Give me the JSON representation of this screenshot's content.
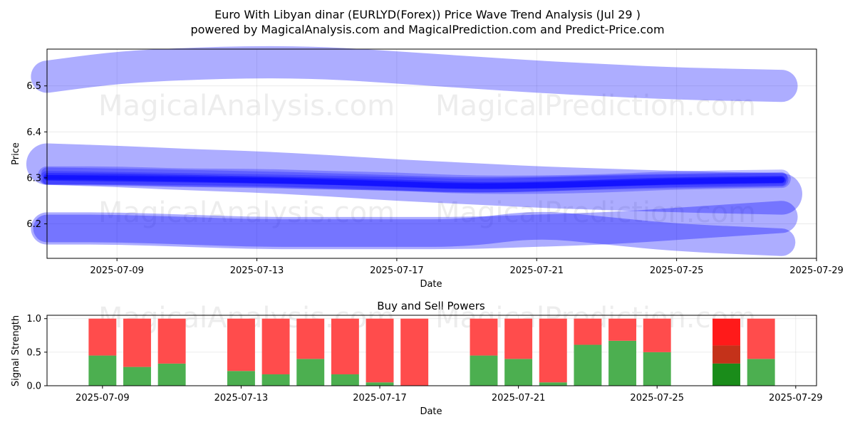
{
  "figure": {
    "title_line1": "Euro With Libyan dinar (EURLYD(Forex)) Price Wave Trend Analysis (Jul 29 )",
    "title_line2": "powered by MagicalAnalysis.com and MagicalPrediction.com and Predict-Price.com",
    "watermarks": [
      "MagicalAnalysis.com",
      "MagicalPrediction.com"
    ]
  },
  "chart_data": [
    {
      "type": "area",
      "title": "",
      "xlabel": "Date",
      "ylabel": "Price",
      "x_ticks": [
        "2025-07-09",
        "2025-07-13",
        "2025-07-17",
        "2025-07-21",
        "2025-07-25",
        "2025-07-29"
      ],
      "y_ticks": [
        6.2,
        6.3,
        6.4,
        6.5
      ],
      "xlim": [
        "2025-07-07",
        "2025-07-29"
      ],
      "ylim": [
        6.125,
        6.58
      ],
      "grid": true,
      "band_color": "#0000ff",
      "series": [
        {
          "x": [
            "2025-07-07",
            "2025-07-09",
            "2025-07-11",
            "2025-07-13",
            "2025-07-15",
            "2025-07-17",
            "2025-07-19",
            "2025-07-21",
            "2025-07-23",
            "2025-07-25",
            "2025-07-28"
          ],
          "y": [
            6.52,
            6.54,
            6.548,
            6.552,
            6.55,
            6.54,
            6.53,
            6.52,
            6.512,
            6.505,
            6.5
          ],
          "width": 0.07,
          "opacity": 0.32
        },
        {
          "x": [
            "2025-07-07",
            "2025-07-09",
            "2025-07-11",
            "2025-07-13",
            "2025-07-15",
            "2025-07-17",
            "2025-07-19",
            "2025-07-21",
            "2025-07-23",
            "2025-07-25",
            "2025-07-28"
          ],
          "y": [
            6.33,
            6.325,
            6.318,
            6.313,
            6.305,
            6.295,
            6.288,
            6.28,
            6.275,
            6.27,
            6.265
          ],
          "width": 0.09,
          "opacity": 0.32
        },
        {
          "x": [
            "2025-07-07",
            "2025-07-09",
            "2025-07-11",
            "2025-07-13",
            "2025-07-15",
            "2025-07-17",
            "2025-07-19",
            "2025-07-21",
            "2025-07-23",
            "2025-07-25",
            "2025-07-28"
          ],
          "y": [
            6.19,
            6.19,
            6.185,
            6.18,
            6.18,
            6.18,
            6.18,
            6.185,
            6.19,
            6.2,
            6.215
          ],
          "width": 0.07,
          "opacity": 0.32
        },
        {
          "x": [
            "2025-07-07",
            "2025-07-09",
            "2025-07-11",
            "2025-07-13",
            "2025-07-15",
            "2025-07-17",
            "2025-07-19",
            "2025-07-21",
            "2025-07-23",
            "2025-07-25",
            "2025-07-28"
          ],
          "y": [
            6.19,
            6.19,
            6.185,
            6.18,
            6.18,
            6.18,
            6.18,
            6.2,
            6.185,
            6.17,
            6.16
          ],
          "width": 0.06,
          "opacity": 0.32
        },
        {
          "x": [
            "2025-07-07",
            "2025-07-09",
            "2025-07-11",
            "2025-07-13",
            "2025-07-15",
            "2025-07-17",
            "2025-07-19",
            "2025-07-21",
            "2025-07-23",
            "2025-07-25",
            "2025-07-28"
          ],
          "y": [
            6.305,
            6.305,
            6.3,
            6.3,
            6.295,
            6.292,
            6.285,
            6.285,
            6.288,
            6.295,
            6.298
          ],
          "width": 0.04,
          "opacity": 0.25
        },
        {
          "x": [
            "2025-07-07",
            "2025-07-09",
            "2025-07-11",
            "2025-07-13",
            "2025-07-15",
            "2025-07-17",
            "2025-07-19",
            "2025-07-21",
            "2025-07-23",
            "2025-07-25",
            "2025-07-28"
          ],
          "y": [
            6.3,
            6.298,
            6.295,
            6.293,
            6.29,
            6.287,
            6.282,
            6.285,
            6.29,
            6.292,
            6.296
          ],
          "width": 0.03,
          "opacity": 0.25
        },
        {
          "x": [
            "2025-07-07",
            "2025-07-09",
            "2025-07-11",
            "2025-07-13",
            "2025-07-15",
            "2025-07-17",
            "2025-07-19",
            "2025-07-21",
            "2025-07-23",
            "2025-07-25",
            "2025-07-28"
          ],
          "y": [
            6.31,
            6.308,
            6.305,
            6.302,
            6.298,
            6.293,
            6.288,
            6.29,
            6.294,
            6.297,
            6.3
          ],
          "width": 0.025,
          "opacity": 0.25
        },
        {
          "x": [
            "2025-07-07",
            "2025-07-09",
            "2025-07-11",
            "2025-07-13",
            "2025-07-15",
            "2025-07-17",
            "2025-07-19",
            "2025-07-21",
            "2025-07-23",
            "2025-07-25",
            "2025-07-28"
          ],
          "y": [
            6.296,
            6.296,
            6.294,
            6.292,
            6.288,
            6.283,
            6.278,
            6.28,
            6.286,
            6.29,
            6.293
          ],
          "width": 0.02,
          "opacity": 0.3
        },
        {
          "x": [
            "2025-07-07",
            "2025-07-09",
            "2025-07-11",
            "2025-07-13",
            "2025-07-15",
            "2025-07-17",
            "2025-07-19",
            "2025-07-21",
            "2025-07-23",
            "2025-07-25",
            "2025-07-28"
          ],
          "y": [
            6.303,
            6.302,
            6.299,
            6.296,
            6.293,
            6.289,
            6.283,
            6.284,
            6.289,
            6.294,
            6.297
          ],
          "width": 0.015,
          "opacity": 0.35
        },
        {
          "x": [
            "2025-07-07",
            "2025-07-09",
            "2025-07-11",
            "2025-07-13",
            "2025-07-15",
            "2025-07-17",
            "2025-07-19",
            "2025-07-21",
            "2025-07-23",
            "2025-07-25",
            "2025-07-28"
          ],
          "y": [
            6.3,
            6.298,
            6.296,
            6.294,
            6.291,
            6.286,
            6.281,
            6.283,
            6.287,
            6.292,
            6.295
          ],
          "width": 0.012,
          "opacity": 0.4
        }
      ]
    },
    {
      "type": "bar",
      "title": "Buy and Sell Powers",
      "xlabel": "Date",
      "ylabel": "Signal Strength",
      "x_ticks": [
        "2025-07-09",
        "2025-07-13",
        "2025-07-17",
        "2025-07-21",
        "2025-07-25",
        "2025-07-29"
      ],
      "y_ticks": [
        0.0,
        0.5,
        1.0
      ],
      "ylim": [
        0,
        1.05
      ],
      "grid": true,
      "buy_color": "#4caf50",
      "sell_color": "#ff4c4c",
      "highlight_buy_color": "#1a8c1a",
      "highlight_sell_color": "#ff1a1a",
      "categories": [
        "2025-07-09",
        "2025-07-10",
        "2025-07-11",
        "2025-07-13",
        "2025-07-14",
        "2025-07-15",
        "2025-07-16",
        "2025-07-17",
        "2025-07-18",
        "2025-07-20",
        "2025-07-21",
        "2025-07-22",
        "2025-07-23",
        "2025-07-24",
        "2025-07-25",
        "2025-07-27",
        "2025-07-28"
      ],
      "series": [
        {
          "name": "",
          "values": [
            0.45,
            0.28,
            0.33,
            0.22,
            0.17,
            0.4,
            0.17,
            0.05,
            0.0,
            0.45,
            0.4,
            0.05,
            0.61,
            0.67,
            0.5,
            0.33,
            0.4
          ]
        },
        {
          "name": "",
          "values": [
            0.55,
            0.72,
            0.67,
            0.78,
            0.83,
            0.6,
            0.83,
            0.95,
            1.0,
            0.55,
            0.6,
            0.95,
            0.39,
            0.33,
            0.5,
            0.67,
            0.6
          ]
        }
      ],
      "highlight": {
        "category": "2025-07-27",
        "buy_values": [
          0.33,
          0.6
        ],
        "sell_values": [
          0.4,
          0.67
        ]
      }
    }
  ]
}
